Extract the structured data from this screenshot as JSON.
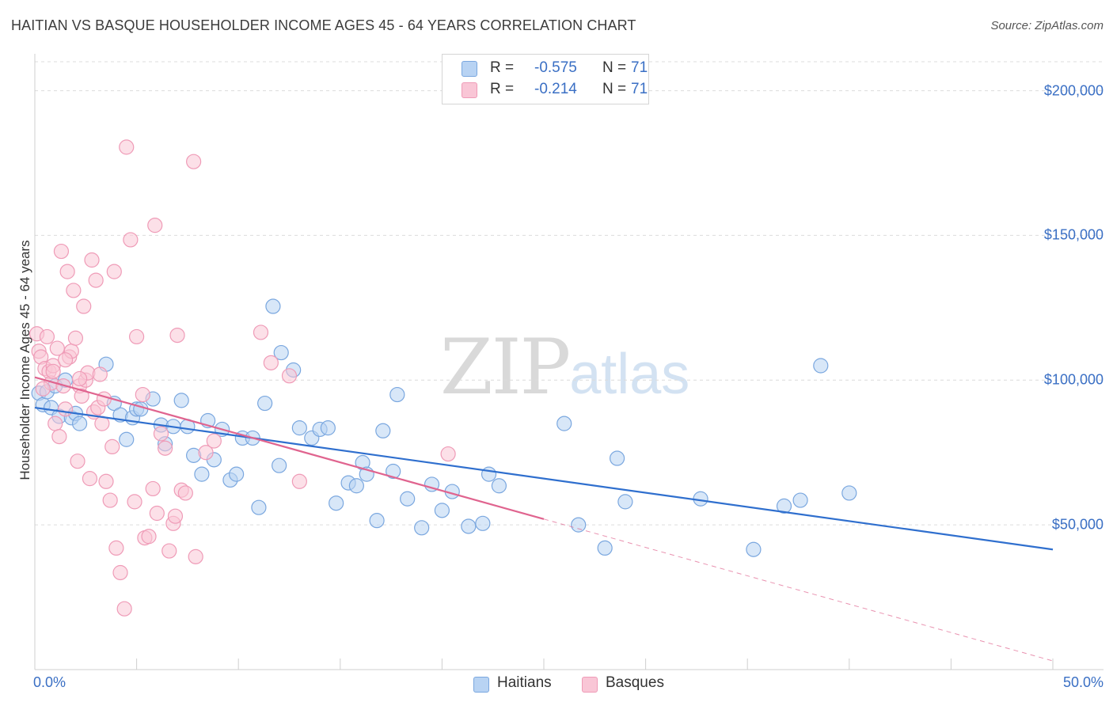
{
  "title": "HAITIAN VS BASQUE HOUSEHOLDER INCOME AGES 45 - 64 YEARS CORRELATION CHART",
  "source": "Source: ZipAtlas.com",
  "watermark": {
    "zip": "ZIP",
    "atlas": "atlas"
  },
  "legend": {
    "series": [
      {
        "r_label": "R =",
        "r_value": "-0.575",
        "n_label": "N =",
        "n_value": "71"
      },
      {
        "r_label": "R =",
        "r_value": "-0.214",
        "n_label": "N =",
        "n_value": "71"
      }
    ]
  },
  "colors": {
    "haitians_fill": "#b8d3f3",
    "haitians_stroke": "#7aa7df",
    "haitians_line": "#2f6fce",
    "basques_fill": "#f9c6d6",
    "basques_stroke": "#ef9bb7",
    "basques_line": "#e0648f",
    "value_text": "#3a6fc4",
    "grid": "#dcdcdc"
  },
  "chart_data": {
    "type": "scatter",
    "xlabel": "",
    "ylabel": "Householder Income Ages 45 - 64 years",
    "x_unit": "percent",
    "xlim": [
      0,
      50
    ],
    "ylim": [
      0,
      210000
    ],
    "x_tick_labels": [
      "0.0%",
      "50.0%"
    ],
    "y_ticks": [
      50000,
      100000,
      150000,
      200000
    ],
    "y_tick_labels": [
      "$50,000",
      "$100,000",
      "$150,000",
      "$200,000"
    ],
    "grid": "horizontal dashed",
    "legend_position": "top-center",
    "series": [
      {
        "name": "Haitians",
        "trend": {
          "x": [
            0,
            50
          ],
          "y": [
            90500,
            41500
          ],
          "style": "solid"
        },
        "points": [
          [
            0.2,
            95500
          ],
          [
            0.4,
            91500
          ],
          [
            0.6,
            96000
          ],
          [
            0.8,
            90500
          ],
          [
            1.0,
            98000
          ],
          [
            1.2,
            87500
          ],
          [
            1.5,
            100000
          ],
          [
            1.8,
            87000
          ],
          [
            2.0,
            88500
          ],
          [
            2.2,
            85000
          ],
          [
            3.5,
            105500
          ],
          [
            3.9,
            92000
          ],
          [
            4.2,
            88000
          ],
          [
            4.5,
            79500
          ],
          [
            4.8,
            87000
          ],
          [
            5.0,
            90000
          ],
          [
            5.2,
            90000
          ],
          [
            5.8,
            93500
          ],
          [
            6.2,
            84500
          ],
          [
            6.4,
            78000
          ],
          [
            6.8,
            84000
          ],
          [
            7.2,
            93000
          ],
          [
            7.5,
            84000
          ],
          [
            7.8,
            74000
          ],
          [
            8.2,
            67500
          ],
          [
            8.5,
            86000
          ],
          [
            8.8,
            72500
          ],
          [
            9.2,
            83000
          ],
          [
            9.6,
            65500
          ],
          [
            9.9,
            67500
          ],
          [
            10.2,
            80000
          ],
          [
            10.7,
            80000
          ],
          [
            11.0,
            56000
          ],
          [
            11.3,
            92000
          ],
          [
            11.7,
            125500
          ],
          [
            12.1,
            109500
          ],
          [
            12.7,
            103500
          ],
          [
            12.0,
            70500
          ],
          [
            13.0,
            83500
          ],
          [
            13.6,
            80000
          ],
          [
            14.0,
            83000
          ],
          [
            14.4,
            83500
          ],
          [
            14.8,
            57500
          ],
          [
            15.4,
            64500
          ],
          [
            15.8,
            63500
          ],
          [
            16.1,
            71500
          ],
          [
            16.3,
            67500
          ],
          [
            16.8,
            51500
          ],
          [
            17.1,
            82500
          ],
          [
            17.6,
            68500
          ],
          [
            17.8,
            95000
          ],
          [
            18.3,
            59000
          ],
          [
            19.0,
            49000
          ],
          [
            19.5,
            64000
          ],
          [
            20.0,
            55000
          ],
          [
            20.5,
            61500
          ],
          [
            21.3,
            49500
          ],
          [
            22.0,
            50500
          ],
          [
            22.3,
            67500
          ],
          [
            22.8,
            63500
          ],
          [
            26.0,
            85000
          ],
          [
            26.7,
            50000
          ],
          [
            28.0,
            42000
          ],
          [
            28.6,
            73000
          ],
          [
            29.0,
            58000
          ],
          [
            32.7,
            59000
          ],
          [
            35.3,
            41500
          ],
          [
            36.8,
            56500
          ],
          [
            37.6,
            58500
          ],
          [
            38.6,
            105000
          ],
          [
            40.0,
            61000
          ]
        ]
      },
      {
        "name": "Basques",
        "trend": {
          "x": [
            0,
            25
          ],
          "y": [
            101000,
            52000
          ],
          "style": "solid",
          "extension": {
            "x": [
              25,
              50
            ],
            "y": [
              52000,
              3000
            ],
            "style": "dashed"
          }
        },
        "points": [
          [
            0.1,
            116000
          ],
          [
            0.2,
            110000
          ],
          [
            0.3,
            108000
          ],
          [
            0.5,
            104000
          ],
          [
            0.6,
            115000
          ],
          [
            0.7,
            103000
          ],
          [
            0.8,
            99000
          ],
          [
            0.9,
            105000
          ],
          [
            1.0,
            85000
          ],
          [
            1.1,
            111000
          ],
          [
            1.2,
            80500
          ],
          [
            1.3,
            144500
          ],
          [
            1.4,
            98000
          ],
          [
            1.5,
            90000
          ],
          [
            1.6,
            137500
          ],
          [
            1.7,
            108000
          ],
          [
            1.8,
            110000
          ],
          [
            1.9,
            131000
          ],
          [
            2.0,
            114500
          ],
          [
            2.1,
            72000
          ],
          [
            2.2,
            98000
          ],
          [
            2.3,
            94500
          ],
          [
            2.4,
            125500
          ],
          [
            2.5,
            100000
          ],
          [
            2.6,
            102500
          ],
          [
            2.7,
            66000
          ],
          [
            2.8,
            141500
          ],
          [
            2.9,
            89000
          ],
          [
            3.0,
            134500
          ],
          [
            3.1,
            90500
          ],
          [
            3.2,
            102000
          ],
          [
            3.3,
            85000
          ],
          [
            3.4,
            93500
          ],
          [
            3.5,
            65000
          ],
          [
            3.7,
            58500
          ],
          [
            3.8,
            77000
          ],
          [
            3.9,
            137500
          ],
          [
            4.0,
            42000
          ],
          [
            4.2,
            33500
          ],
          [
            4.4,
            21000
          ],
          [
            4.5,
            180500
          ],
          [
            4.7,
            148500
          ],
          [
            4.9,
            58000
          ],
          [
            5.0,
            115000
          ],
          [
            5.3,
            95000
          ],
          [
            5.4,
            45500
          ],
          [
            5.6,
            46000
          ],
          [
            5.8,
            62500
          ],
          [
            5.9,
            153500
          ],
          [
            6.0,
            54000
          ],
          [
            6.2,
            81500
          ],
          [
            6.4,
            76500
          ],
          [
            6.6,
            41000
          ],
          [
            6.8,
            50500
          ],
          [
            6.9,
            53000
          ],
          [
            7.0,
            115500
          ],
          [
            7.2,
            62000
          ],
          [
            7.4,
            61000
          ],
          [
            7.8,
            175500
          ],
          [
            7.9,
            39000
          ],
          [
            8.4,
            75000
          ],
          [
            8.8,
            79000
          ],
          [
            11.1,
            116500
          ],
          [
            11.6,
            106000
          ],
          [
            12.5,
            101500
          ],
          [
            13.0,
            65000
          ],
          [
            20.3,
            74500
          ],
          [
            0.4,
            97000
          ],
          [
            0.9,
            103000
          ],
          [
            1.5,
            107000
          ],
          [
            2.2,
            100500
          ]
        ]
      }
    ]
  },
  "bottom_legend": {
    "items": [
      "Haitians",
      "Basques"
    ]
  }
}
